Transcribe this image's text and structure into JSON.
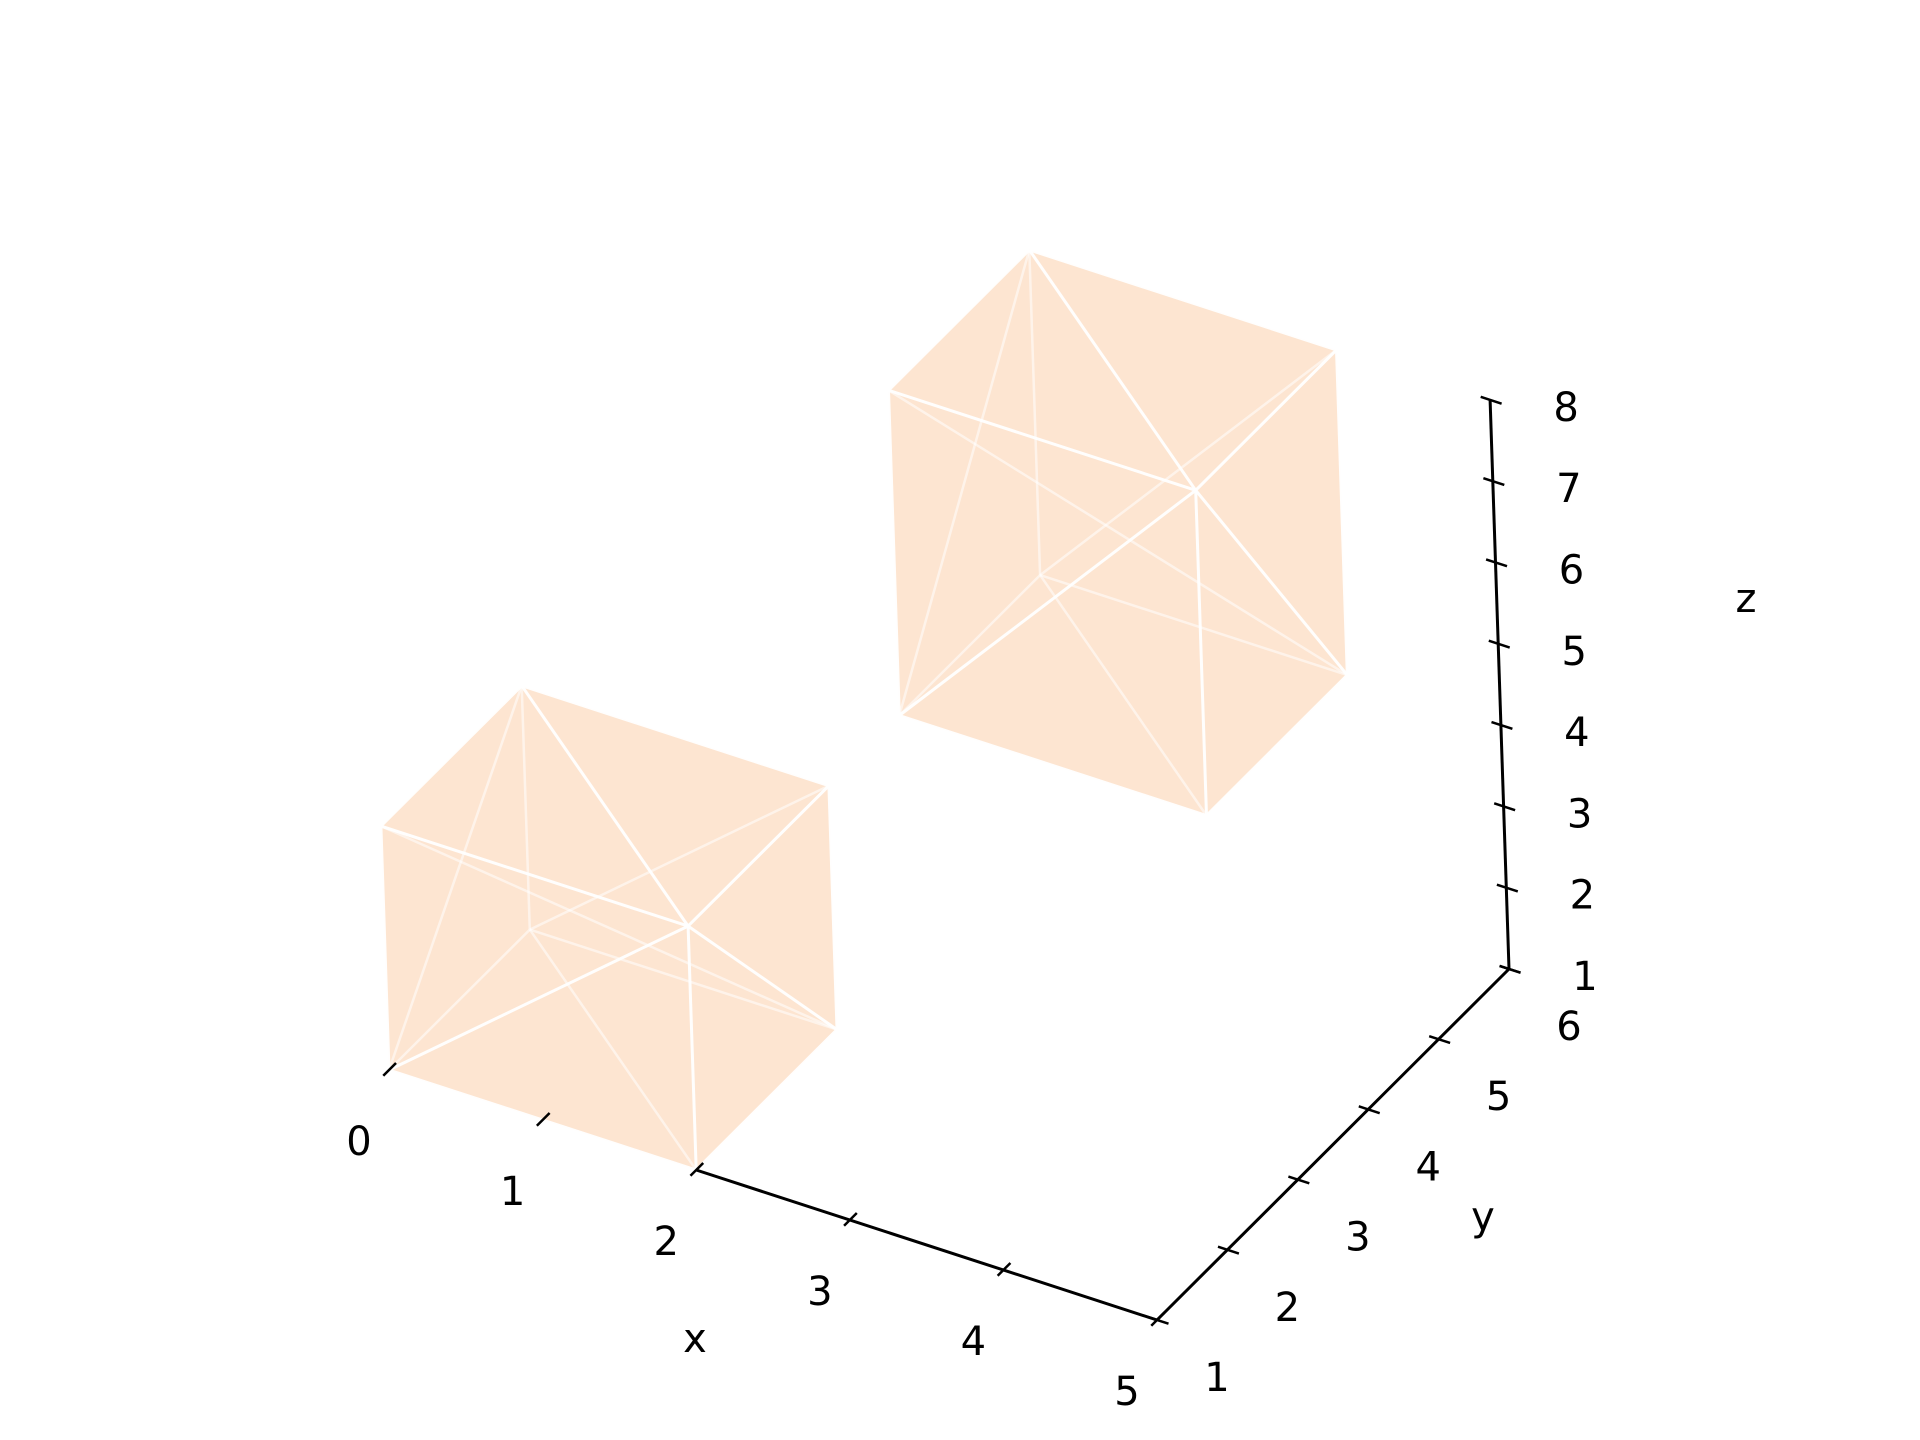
{
  "chart_data": {
    "type": "3d-box",
    "title": "",
    "xlabel": "x",
    "ylabel": "y",
    "zlabel": "z",
    "xlim": [
      0,
      5
    ],
    "ylim": [
      1,
      6
    ],
    "zlim": [
      1,
      8
    ],
    "x_ticks": [
      "0",
      "1",
      "2",
      "3",
      "4",
      "5"
    ],
    "y_ticks": [
      "1",
      "2",
      "3",
      "4",
      "5",
      "6"
    ],
    "z_ticks": [
      "1",
      "2",
      "3",
      "4",
      "5",
      "6",
      "7",
      "8"
    ],
    "boxes": [
      {
        "x": [
          0,
          2
        ],
        "y": [
          1,
          3
        ],
        "z": [
          1,
          4
        ]
      },
      {
        "x": [
          2,
          4
        ],
        "y": [
          4,
          6
        ],
        "z": [
          4,
          8
        ]
      }
    ],
    "grid": false,
    "colors": {
      "face": "#fde5d1",
      "edge": "#ffffff",
      "axis": "#000000"
    }
  }
}
